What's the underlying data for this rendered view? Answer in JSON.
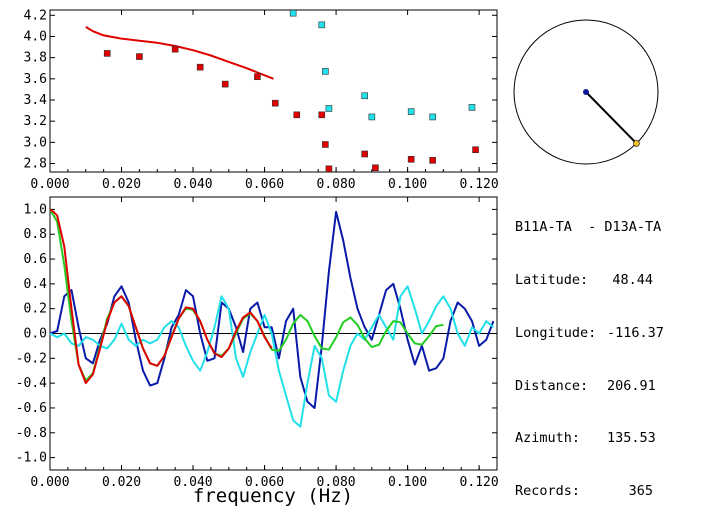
{
  "info": {
    "pair": "B11A-TA  - D13A-TA",
    "rows": [
      {
        "label": "Latitude:",
        "value": "48.44"
      },
      {
        "label": "Longitude:",
        "value": "-116.37"
      },
      {
        "label": "Distance:",
        "value": "206.91"
      },
      {
        "label": "Azimuth:",
        "value": "135.53"
      },
      {
        "label": "Records:",
        "value": "365"
      }
    ]
  },
  "azimuth_deg": 135.53,
  "colors": {
    "red": "#e00000",
    "cyan": "#22e0e8",
    "blue": "#0a1aa8",
    "green": "#22cc22",
    "azimuth_dot_center": "#0a1a9a",
    "azimuth_dot_end": "#f0c020"
  },
  "chart_data": [
    {
      "type": "scatter",
      "name": "dispersion",
      "xlim": [
        0.0,
        0.125
      ],
      "ylim": [
        2.72,
        4.25
      ],
      "xticks": [
        "0.000",
        "0.020",
        "0.040",
        "0.060",
        "0.080",
        "0.100",
        "0.120"
      ],
      "xtick_values": [
        0.0,
        0.02,
        0.04,
        0.06,
        0.08,
        0.1,
        0.12
      ],
      "yticks": [
        "2.8",
        "3.0",
        "3.2",
        "3.4",
        "3.6",
        "3.8",
        "4.0",
        "4.2"
      ],
      "ytick_values": [
        2.8,
        3.0,
        3.2,
        3.4,
        3.6,
        3.8,
        4.0,
        4.2
      ],
      "series": [
        {
          "name": "red-curve",
          "kind": "line",
          "x": [
            0.01,
            0.012,
            0.015,
            0.02,
            0.025,
            0.03,
            0.035,
            0.04,
            0.045,
            0.05,
            0.055,
            0.058,
            0.061,
            0.0625
          ],
          "y": [
            4.09,
            4.05,
            4.01,
            3.98,
            3.96,
            3.94,
            3.91,
            3.87,
            3.82,
            3.76,
            3.7,
            3.66,
            3.62,
            3.6
          ]
        },
        {
          "name": "red-points",
          "kind": "marker",
          "x": [
            0.016,
            0.025,
            0.035,
            0.042,
            0.049,
            0.058,
            0.063,
            0.069,
            0.076,
            0.077,
            0.078,
            0.088,
            0.091,
            0.101,
            0.107,
            0.119
          ],
          "y": [
            3.84,
            3.81,
            3.88,
            3.71,
            3.55,
            3.62,
            3.37,
            3.26,
            3.26,
            2.98,
            2.75,
            2.89,
            2.76,
            2.84,
            2.83,
            2.93
          ]
        },
        {
          "name": "cyan-points",
          "kind": "marker",
          "x": [
            0.068,
            0.076,
            0.077,
            0.078,
            0.088,
            0.09,
            0.101,
            0.107,
            0.118
          ],
          "y": [
            4.22,
            4.11,
            3.67,
            3.32,
            3.44,
            3.24,
            3.29,
            3.24,
            3.33
          ]
        }
      ]
    },
    {
      "type": "line",
      "name": "correlation",
      "xlabel": "frequency (Hz)",
      "xlim": [
        0.0,
        0.125
      ],
      "ylim": [
        -1.1,
        1.1
      ],
      "xticks": [
        "0.000",
        "0.020",
        "0.040",
        "0.060",
        "0.080",
        "0.100",
        "0.120"
      ],
      "xtick_values": [
        0.0,
        0.02,
        0.04,
        0.06,
        0.08,
        0.1,
        0.12
      ],
      "yticks": [
        "1.0",
        "0.8",
        "0.6",
        "0.4",
        "0.2",
        "0.0",
        "-0.2",
        "-0.4",
        "-0.6",
        "-0.8",
        "-1.0"
      ],
      "ytick_values": [
        1.0,
        0.8,
        0.6,
        0.4,
        0.2,
        0.0,
        -0.2,
        -0.4,
        -0.6,
        -0.8,
        -1.0
      ],
      "series": [
        {
          "name": "blue",
          "x": [
            0.0,
            0.002,
            0.004,
            0.006,
            0.008,
            0.01,
            0.012,
            0.014,
            0.016,
            0.018,
            0.02,
            0.022,
            0.024,
            0.026,
            0.028,
            0.03,
            0.032,
            0.034,
            0.036,
            0.038,
            0.04,
            0.042,
            0.044,
            0.046,
            0.048,
            0.05,
            0.052,
            0.054,
            0.056,
            0.058,
            0.06,
            0.062,
            0.064,
            0.066,
            0.068,
            0.07,
            0.072,
            0.074,
            0.076,
            0.078,
            0.08,
            0.082,
            0.084,
            0.086,
            0.088,
            0.09,
            0.092,
            0.094,
            0.096,
            0.098,
            0.1,
            0.102,
            0.104,
            0.106,
            0.108,
            0.11,
            0.112,
            0.114,
            0.116,
            0.118,
            0.12,
            0.122,
            0.124
          ],
          "y": [
            0.0,
            0.02,
            0.3,
            0.35,
            0.05,
            -0.2,
            -0.24,
            -0.05,
            0.08,
            0.3,
            0.38,
            0.25,
            -0.05,
            -0.3,
            -0.42,
            -0.4,
            -0.2,
            0.05,
            0.15,
            0.35,
            0.3,
            0.0,
            -0.22,
            -0.2,
            0.25,
            0.2,
            0.05,
            -0.15,
            0.2,
            0.25,
            0.05,
            0.05,
            -0.2,
            0.1,
            0.2,
            -0.35,
            -0.55,
            -0.6,
            -0.1,
            0.5,
            0.98,
            0.75,
            0.45,
            0.2,
            0.05,
            -0.05,
            0.15,
            0.35,
            0.4,
            0.2,
            -0.05,
            -0.25,
            -0.1,
            -0.3,
            -0.28,
            -0.2,
            0.1,
            0.25,
            0.2,
            0.1,
            -0.1,
            -0.05,
            0.1
          ]
        },
        {
          "name": "cyan",
          "x": [
            0.0,
            0.002,
            0.004,
            0.006,
            0.008,
            0.01,
            0.012,
            0.014,
            0.016,
            0.018,
            0.02,
            0.022,
            0.024,
            0.026,
            0.028,
            0.03,
            0.032,
            0.034,
            0.036,
            0.038,
            0.04,
            0.042,
            0.044,
            0.046,
            0.048,
            0.05,
            0.052,
            0.054,
            0.056,
            0.058,
            0.06,
            0.062,
            0.064,
            0.066,
            0.068,
            0.07,
            0.072,
            0.074,
            0.076,
            0.078,
            0.08,
            0.082,
            0.084,
            0.086,
            0.088,
            0.09,
            0.092,
            0.094,
            0.096,
            0.098,
            0.1,
            0.102,
            0.104,
            0.106,
            0.108,
            0.11,
            0.112,
            0.114,
            0.116,
            0.118,
            0.12,
            0.122,
            0.124
          ],
          "y": [
            0.0,
            -0.03,
            0.0,
            -0.08,
            -0.1,
            -0.03,
            -0.05,
            -0.1,
            -0.12,
            -0.05,
            0.08,
            -0.05,
            -0.1,
            -0.05,
            -0.08,
            -0.05,
            0.05,
            0.1,
            0.05,
            -0.1,
            -0.22,
            -0.3,
            -0.15,
            0.05,
            0.3,
            0.2,
            -0.2,
            -0.35,
            -0.15,
            0.0,
            0.15,
            0.0,
            -0.3,
            -0.5,
            -0.7,
            -0.75,
            -0.4,
            -0.1,
            -0.2,
            -0.5,
            -0.55,
            -0.3,
            -0.1,
            0.0,
            -0.05,
            0.05,
            0.15,
            0.05,
            -0.05,
            0.3,
            0.38,
            0.2,
            0.0,
            0.1,
            0.22,
            0.3,
            0.2,
            0.0,
            -0.1,
            0.05,
            0.0,
            0.1,
            0.05
          ]
        },
        {
          "name": "green",
          "x": [
            0.0,
            0.002,
            0.004,
            0.006,
            0.008,
            0.01,
            0.012,
            0.014,
            0.016,
            0.018,
            0.02,
            0.022,
            0.024,
            0.026,
            0.028,
            0.03,
            0.032,
            0.034,
            0.036,
            0.038,
            0.04,
            0.042,
            0.044,
            0.046,
            0.048,
            0.05,
            0.052,
            0.054,
            0.056,
            0.058,
            0.06,
            0.062,
            0.064,
            0.066,
            0.068,
            0.07,
            0.072,
            0.074,
            0.076,
            0.078,
            0.08,
            0.082,
            0.084,
            0.086,
            0.088,
            0.09,
            0.092,
            0.094,
            0.096,
            0.098,
            0.1,
            0.102,
            0.104,
            0.106,
            0.108,
            0.11
          ],
          "y": [
            1.0,
            0.9,
            0.55,
            0.1,
            -0.25,
            -0.38,
            -0.32,
            -0.1,
            0.12,
            0.25,
            0.3,
            0.22,
            0.05,
            -0.12,
            -0.24,
            -0.26,
            -0.18,
            -0.02,
            0.12,
            0.2,
            0.19,
            0.1,
            -0.05,
            -0.16,
            -0.18,
            -0.12,
            0.0,
            0.12,
            0.16,
            0.1,
            -0.02,
            -0.13,
            -0.14,
            -0.05,
            0.08,
            0.15,
            0.1,
            -0.02,
            -0.12,
            -0.13,
            -0.03,
            0.09,
            0.13,
            0.07,
            -0.04,
            -0.11,
            -0.09,
            0.02,
            0.1,
            0.09,
            0.0,
            -0.08,
            -0.09,
            -0.02,
            0.06,
            0.07
          ]
        },
        {
          "name": "red",
          "x": [
            0.0,
            0.001,
            0.002,
            0.004,
            0.006,
            0.008,
            0.01,
            0.012,
            0.014,
            0.016,
            0.018,
            0.02,
            0.022,
            0.024,
            0.026,
            0.028,
            0.03,
            0.032,
            0.034,
            0.036,
            0.038,
            0.04,
            0.042,
            0.044,
            0.046,
            0.048,
            0.05,
            0.052,
            0.054,
            0.056,
            0.058,
            0.06,
            0.062
          ],
          "y": [
            1.0,
            0.98,
            0.95,
            0.7,
            0.2,
            -0.25,
            -0.4,
            -0.33,
            -0.12,
            0.1,
            0.25,
            0.3,
            0.22,
            0.05,
            -0.12,
            -0.24,
            -0.26,
            -0.18,
            -0.03,
            0.12,
            0.21,
            0.2,
            0.1,
            -0.05,
            -0.16,
            -0.19,
            -0.12,
            0.02,
            0.13,
            0.17,
            0.1,
            -0.03,
            -0.12
          ]
        }
      ]
    }
  ]
}
